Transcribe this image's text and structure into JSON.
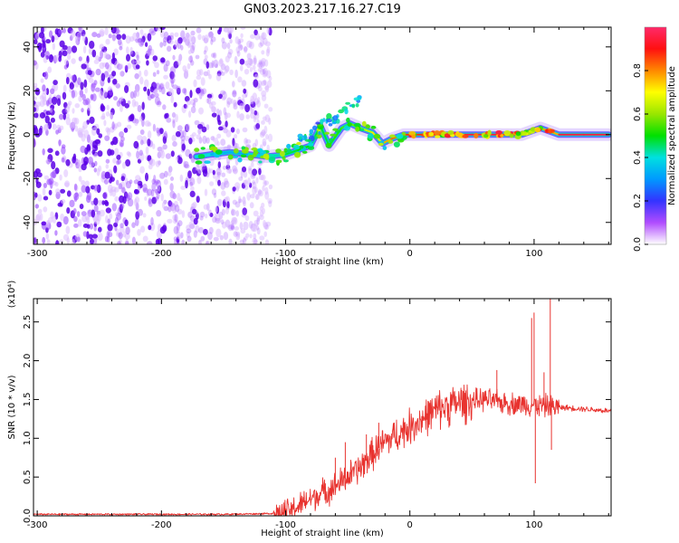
{
  "title": "GN03.2023.217.16.27.C19",
  "chart_data": [
    {
      "type": "heatmap",
      "xlabel": "Height of straight line (km)",
      "ylabel": "Frequency (Hz)",
      "xlim": [
        -303,
        162
      ],
      "ylim": [
        -50,
        49
      ],
      "x_ticks": [
        -300,
        -200,
        -100,
        0,
        100
      ],
      "y_ticks": [
        -40,
        -20,
        0,
        20,
        40
      ],
      "colorbar": {
        "label": "Normalized spectral amplitude",
        "range": [
          0.0,
          1.0
        ],
        "ticks": [
          "0.0",
          "0.2",
          "0.4",
          "0.6",
          "0.8"
        ]
      },
      "noise_region_x": [
        -303,
        -112
      ],
      "signal_ridge": [
        {
          "x": -172,
          "f": -10,
          "a": 0.45
        },
        {
          "x": -160,
          "f": -9,
          "a": 0.35
        },
        {
          "x": -145,
          "f": -8,
          "a": 0.3
        },
        {
          "x": -130,
          "f": -9,
          "a": 0.35
        },
        {
          "x": -115,
          "f": -10,
          "a": 0.4
        },
        {
          "x": -100,
          "f": -9,
          "a": 0.45
        },
        {
          "x": -90,
          "f": -7,
          "a": 0.5
        },
        {
          "x": -80,
          "f": -5,
          "a": 0.5
        },
        {
          "x": -72,
          "f": 4,
          "a": 0.45
        },
        {
          "x": -65,
          "f": -5,
          "a": 0.5
        },
        {
          "x": -55,
          "f": 3,
          "a": 0.55
        },
        {
          "x": -48,
          "f": 5,
          "a": 0.55
        },
        {
          "x": -40,
          "f": 3,
          "a": 0.6
        },
        {
          "x": -30,
          "f": 1,
          "a": 0.7
        },
        {
          "x": -22,
          "f": -4,
          "a": 0.75
        },
        {
          "x": -15,
          "f": -2,
          "a": 0.8
        },
        {
          "x": -5,
          "f": 0,
          "a": 0.85
        },
        {
          "x": 10,
          "f": 0,
          "a": 0.9
        },
        {
          "x": 30,
          "f": 0,
          "a": 0.95
        },
        {
          "x": 50,
          "f": 0,
          "a": 0.95
        },
        {
          "x": 70,
          "f": 0,
          "a": 0.95
        },
        {
          "x": 90,
          "f": 0,
          "a": 0.9
        },
        {
          "x": 105,
          "f": 3,
          "a": 0.6
        },
        {
          "x": 120,
          "f": 0,
          "a": 0.95
        },
        {
          "x": 140,
          "f": 0,
          "a": 0.95
        },
        {
          "x": 160,
          "f": 0,
          "a": 0.95
        }
      ]
    },
    {
      "type": "line",
      "xlabel": "Height of straight line (km)",
      "ylabel": "SNR (10 * v/v)",
      "y_multiplier": "(x10⁴)",
      "xlim": [
        -303,
        162
      ],
      "ylim": [
        0,
        2.8
      ],
      "x_ticks": [
        -300,
        -200,
        -100,
        0,
        100
      ],
      "y_ticks": [
        "0.0",
        "0.5",
        "1.0",
        "1.5",
        "2.0",
        "2.5"
      ],
      "line_color": "#e8332f",
      "series": [
        {
          "x": [
            -303,
            -250,
            -200,
            -150,
            -110,
            -100,
            -90,
            -80,
            -70,
            -60,
            -50,
            -40,
            -30,
            -20,
            -10,
            0,
            10,
            20,
            30,
            40,
            50,
            60,
            70,
            80,
            90,
            100,
            110,
            120,
            140,
            162
          ],
          "values": [
            0.02,
            0.02,
            0.02,
            0.02,
            0.03,
            0.05,
            0.12,
            0.22,
            0.3,
            0.38,
            0.5,
            0.62,
            0.8,
            0.95,
            1.05,
            1.15,
            1.25,
            1.35,
            1.42,
            1.46,
            1.48,
            1.5,
            1.47,
            1.45,
            1.44,
            1.43,
            1.42,
            1.4,
            1.38,
            1.35
          ]
        }
      ],
      "spikes": [
        {
          "x": -60,
          "y": 0.75
        },
        {
          "x": -52,
          "y": 0.95
        },
        {
          "x": -35,
          "y": 1.05
        },
        {
          "x": -25,
          "y": 1.2
        },
        {
          "x": 70,
          "y": 1.88
        },
        {
          "x": 98,
          "y": 2.55
        },
        {
          "x": 100,
          "y": 2.62
        },
        {
          "x": 101,
          "y": 0.42
        },
        {
          "x": 108,
          "y": 1.85
        },
        {
          "x": 113,
          "y": 2.8
        },
        {
          "x": 114,
          "y": 0.85
        }
      ]
    }
  ]
}
